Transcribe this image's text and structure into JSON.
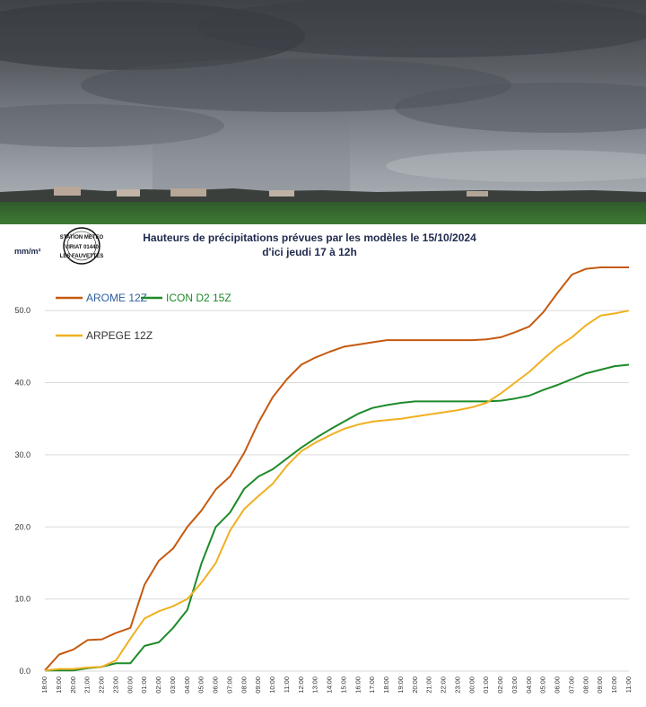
{
  "stamp": {
    "line1": "STATION METEO",
    "line2": "VIRIAT 01440",
    "line3": "LES FAUVETTES"
  },
  "colors": {
    "arome": "#c55a11",
    "icon": "#1e8a2a",
    "arpege": "#f0b020",
    "grid": "#d9d9d9",
    "title": "#1f2a4d"
  },
  "chart_data": {
    "type": "line",
    "title": "Hauteurs de précipitations  prévues par les modèles le 15/10/2024",
    "subtitle": "d'ici jeudi 17 à 12h",
    "ylabel": "mm/m²",
    "ylim": [
      0,
      55
    ],
    "yticks": [
      "0.0",
      "10.0",
      "20.0",
      "30.0",
      "40.0",
      "50.0"
    ],
    "grid": true,
    "legend_position": "top-left",
    "x": [
      "18:00",
      "19:00",
      "20:00",
      "21:00",
      "22:00",
      "23:00",
      "00:00",
      "01:00",
      "02:00",
      "03:00",
      "04:00",
      "05:00",
      "06:00",
      "07:00",
      "08:00",
      "09:00",
      "10:00",
      "11:00",
      "12:00",
      "13:00",
      "14:00",
      "15:00",
      "16:00",
      "17:00",
      "18:00",
      "19:00",
      "20:00",
      "21:00",
      "22:00",
      "23:00",
      "00:00",
      "01:00",
      "02:00",
      "03:00",
      "04:00",
      "05:00",
      "06:00",
      "07:00",
      "08:00",
      "09:00",
      "10:00",
      "11:00"
    ],
    "series": [
      {
        "name": "AROME 12Z",
        "label_color": "#2e5fa0",
        "color": "#c55a11",
        "values": [
          0.1,
          2.3,
          3.0,
          4.3,
          4.4,
          5.3,
          6.0,
          12.0,
          15.3,
          17.0,
          20.0,
          22.3,
          25.2,
          27.0,
          30.3,
          34.5,
          38.0,
          40.5,
          42.5,
          43.5,
          44.3,
          45.0,
          45.3,
          45.6,
          45.9,
          45.9,
          45.9,
          45.9,
          45.9,
          45.9,
          45.9,
          46.0,
          46.3,
          47.0,
          47.8,
          49.8,
          52.5,
          55.0,
          55.8,
          56.0,
          56.0,
          56.0
        ]
      },
      {
        "name": "ICON D2 15Z",
        "label_color": "#1e8a2a",
        "color": "#1e8a2a",
        "values": [
          0.1,
          0.1,
          0.1,
          0.4,
          0.6,
          1.1,
          1.1,
          3.5,
          4.0,
          6.0,
          8.5,
          15.0,
          20.0,
          22.0,
          25.3,
          27.0,
          28.0,
          29.5,
          31.0,
          32.3,
          33.5,
          34.6,
          35.7,
          36.5,
          36.9,
          37.2,
          37.4,
          37.4,
          37.4,
          37.4,
          37.4,
          37.4,
          37.5,
          37.8,
          38.2,
          39.0,
          39.7,
          40.5,
          41.3,
          41.8,
          42.3,
          42.5
        ]
      },
      {
        "name": "ARPEGE 12Z",
        "label_color": "#333333",
        "color": "#f0b020",
        "values": [
          0.1,
          0.3,
          0.3,
          0.5,
          0.6,
          1.5,
          4.5,
          7.3,
          8.3,
          9.0,
          10.0,
          12.3,
          15.0,
          19.5,
          22.5,
          24.3,
          26.0,
          28.5,
          30.5,
          31.7,
          32.7,
          33.6,
          34.2,
          34.6,
          34.8,
          35.0,
          35.3,
          35.6,
          35.9,
          36.2,
          36.6,
          37.2,
          38.5,
          40.0,
          41.5,
          43.3,
          45.0,
          46.3,
          48.0,
          49.3,
          49.6,
          50.0
        ]
      }
    ]
  }
}
